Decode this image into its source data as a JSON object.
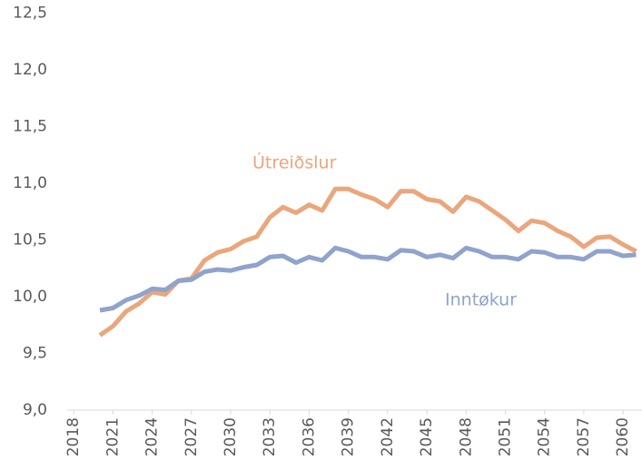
{
  "chart_data": {
    "type": "line",
    "x": [
      2020,
      2021,
      2022,
      2023,
      2024,
      2025,
      2026,
      2027,
      2028,
      2029,
      2030,
      2031,
      2032,
      2033,
      2034,
      2035,
      2036,
      2037,
      2038,
      2039,
      2040,
      2041,
      2042,
      2043,
      2044,
      2045,
      2046,
      2047,
      2048,
      2049,
      2050,
      2051,
      2052,
      2053,
      2054,
      2055,
      2056,
      2057,
      2058,
      2059,
      2060,
      2061
    ],
    "series": [
      {
        "name": "Útreiðslur",
        "color": "#eaa67c",
        "values": [
          9.66,
          9.74,
          9.87,
          9.94,
          10.04,
          10.02,
          10.14,
          10.16,
          10.32,
          10.39,
          10.42,
          10.49,
          10.53,
          10.7,
          10.79,
          10.74,
          10.81,
          10.76,
          10.95,
          10.95,
          10.9,
          10.86,
          10.79,
          10.93,
          10.93,
          10.86,
          10.84,
          10.75,
          10.88,
          10.84,
          10.76,
          10.68,
          10.58,
          10.67,
          10.65,
          10.58,
          10.53,
          10.44,
          10.52,
          10.53,
          10.46,
          10.4
        ]
      },
      {
        "name": "Inntøkur",
        "color": "#8fa3cc",
        "values": [
          9.88,
          9.9,
          9.97,
          10.01,
          10.07,
          10.06,
          10.14,
          10.15,
          10.22,
          10.24,
          10.23,
          10.26,
          10.28,
          10.35,
          10.36,
          10.3,
          10.35,
          10.32,
          10.43,
          10.4,
          10.35,
          10.35,
          10.33,
          10.41,
          10.4,
          10.35,
          10.37,
          10.34,
          10.43,
          10.4,
          10.35,
          10.35,
          10.33,
          10.4,
          10.39,
          10.35,
          10.35,
          10.33,
          10.4,
          10.4,
          10.36,
          10.37
        ]
      }
    ],
    "xlim": [
      2017.5,
      2061.5
    ],
    "xticks": [
      2018,
      2021,
      2024,
      2027,
      2030,
      2033,
      2036,
      2039,
      2042,
      2045,
      2048,
      2051,
      2054,
      2057,
      2060
    ],
    "ylim": [
      9,
      12.5
    ],
    "yticks": [
      {
        "value": 9,
        "label": "9,0"
      },
      {
        "value": 9.5,
        "label": "9,5"
      },
      {
        "value": 10,
        "label": "10,0"
      },
      {
        "value": 10.5,
        "label": "10,5"
      },
      {
        "value": 11,
        "label": "11,0"
      },
      {
        "value": 11.5,
        "label": "11,5"
      },
      {
        "value": 12,
        "label": "12,0"
      },
      {
        "value": 12.5,
        "label": "12,5"
      }
    ]
  }
}
